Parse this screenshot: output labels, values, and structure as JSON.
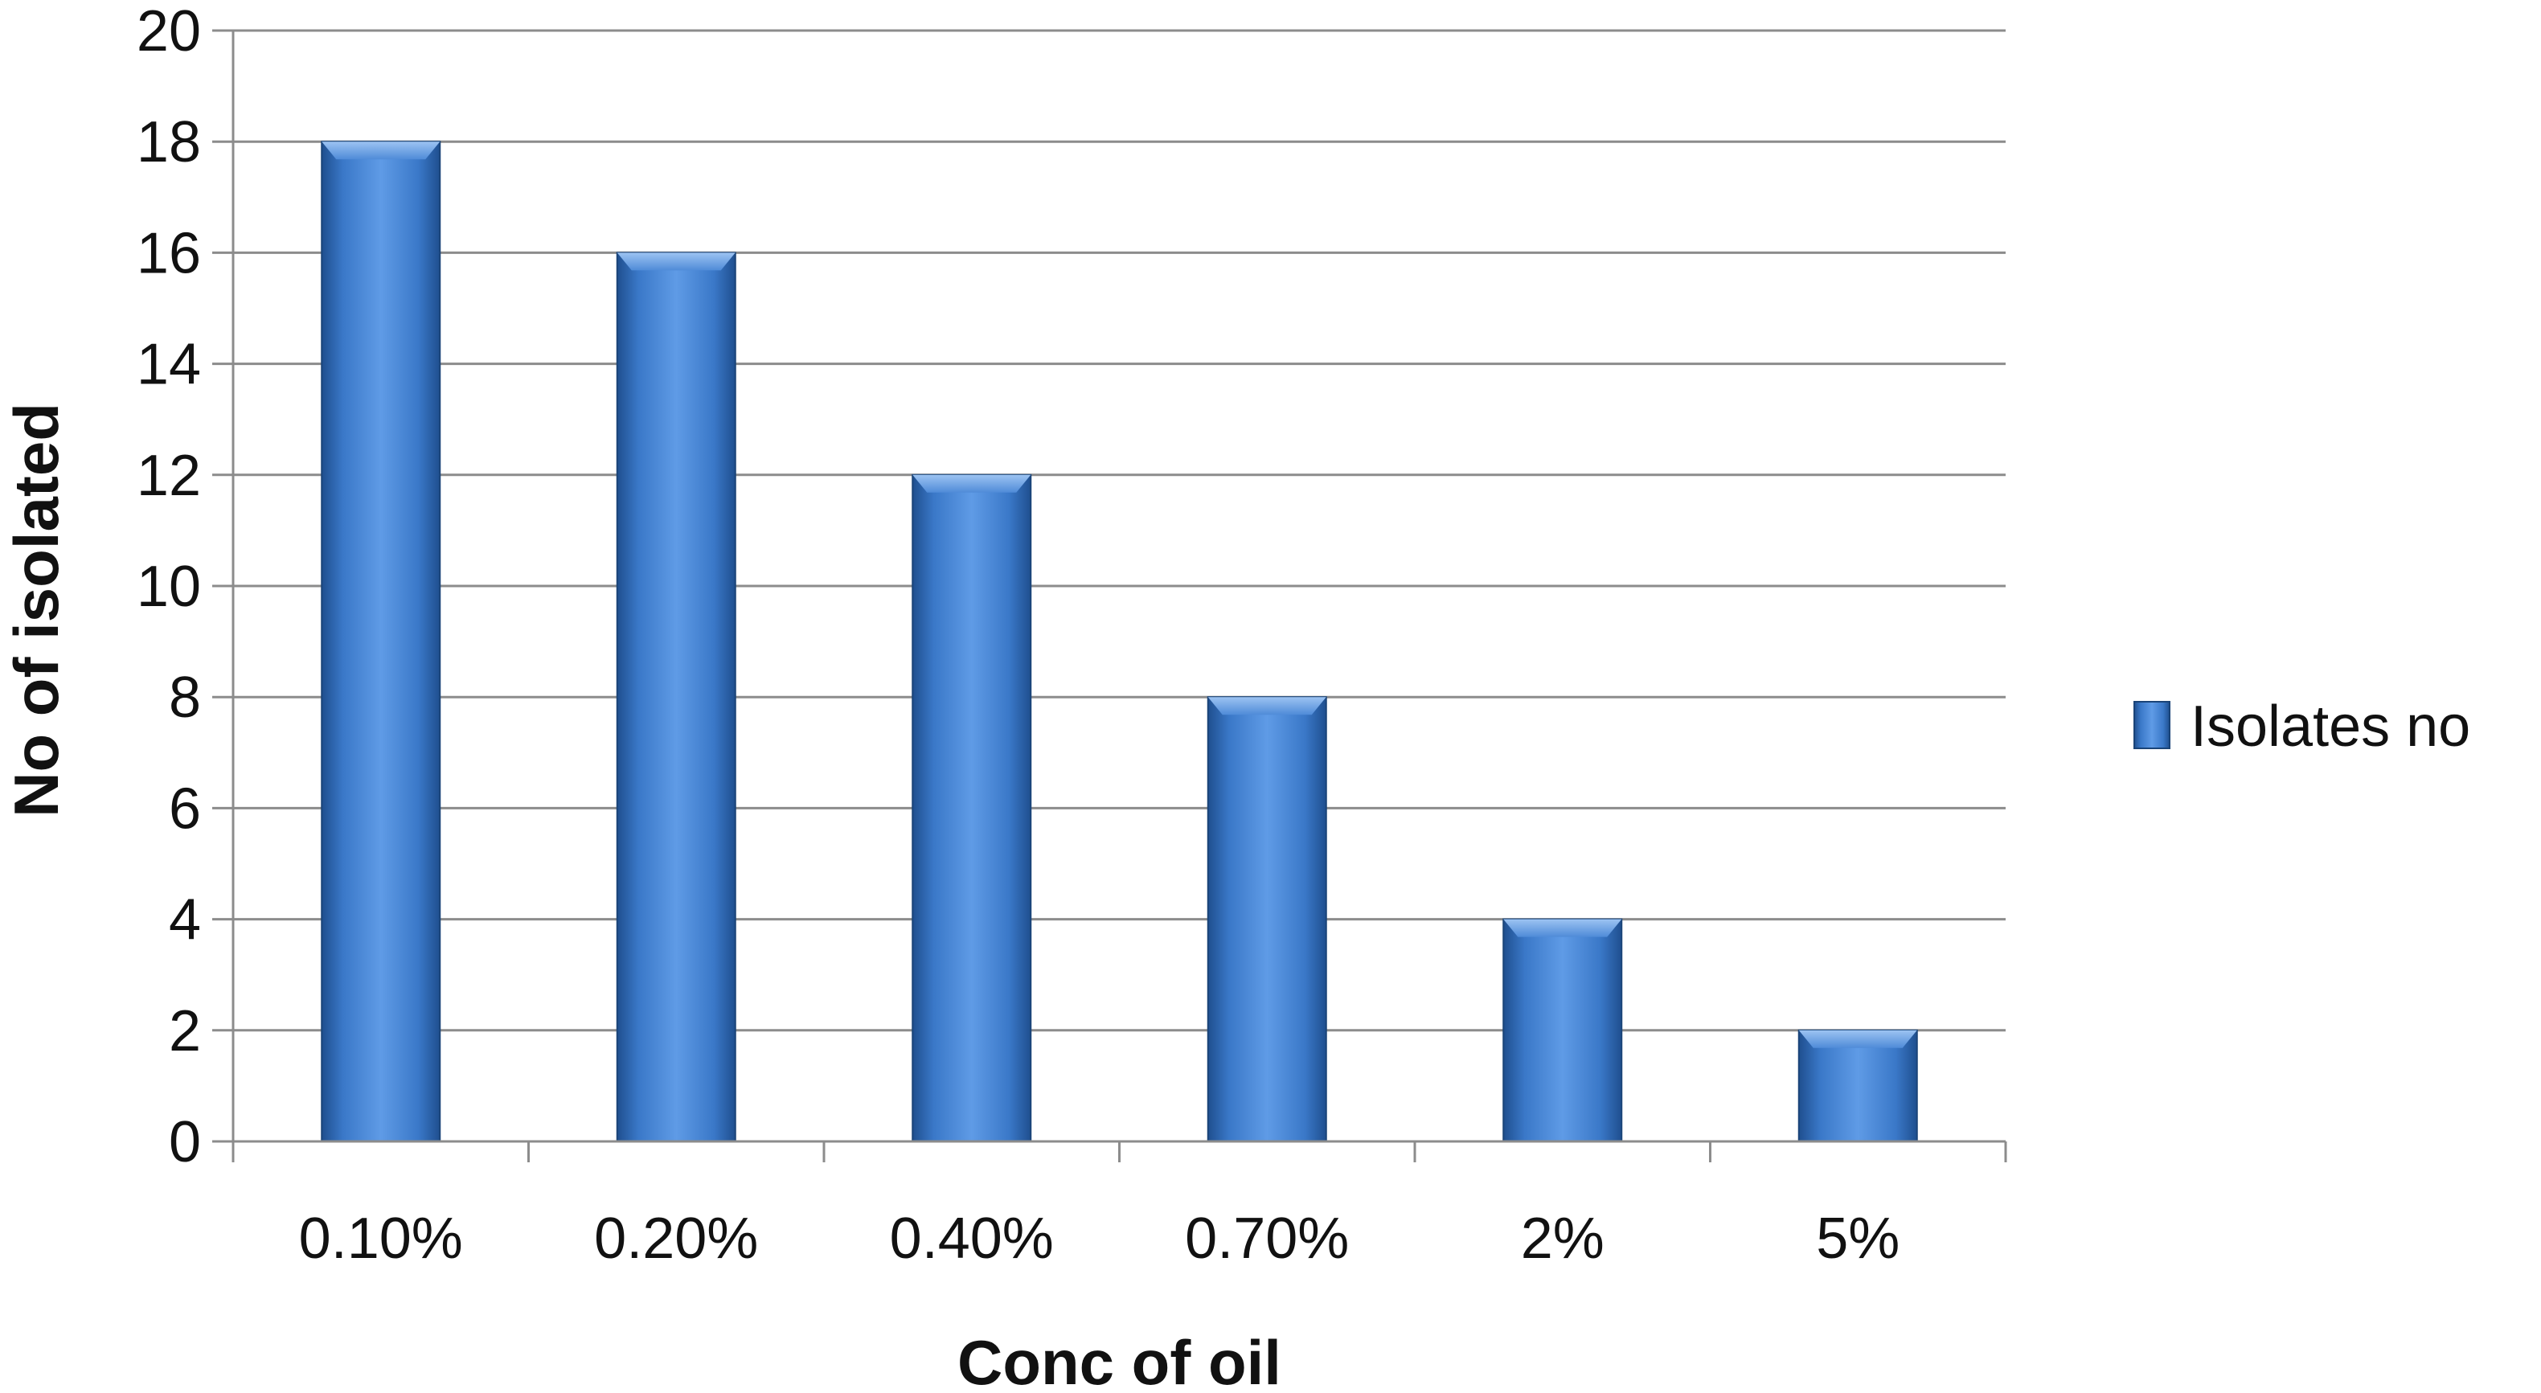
{
  "chart_data": {
    "type": "bar",
    "categories": [
      "0.10%",
      "0.20%",
      "0.40%",
      "0.70%",
      "2%",
      "5%"
    ],
    "series": [
      {
        "name": "Isolates no",
        "values": [
          18,
          16,
          12,
          8,
          4,
          2
        ]
      }
    ],
    "xlabel": "Conc of oil",
    "ylabel": "No of isolated",
    "ylim": [
      0,
      20
    ],
    "yticks": [
      0,
      2,
      4,
      6,
      8,
      10,
      12,
      14,
      16,
      18,
      20
    ],
    "grid": true,
    "legend_position": "right",
    "colors": {
      "bar_light": "#5f9be6",
      "bar_mid": "#3a78c8",
      "bar_dark": "#1f4f8f",
      "grid": "#8c8c8c",
      "axis": "#8c8c8c"
    }
  }
}
